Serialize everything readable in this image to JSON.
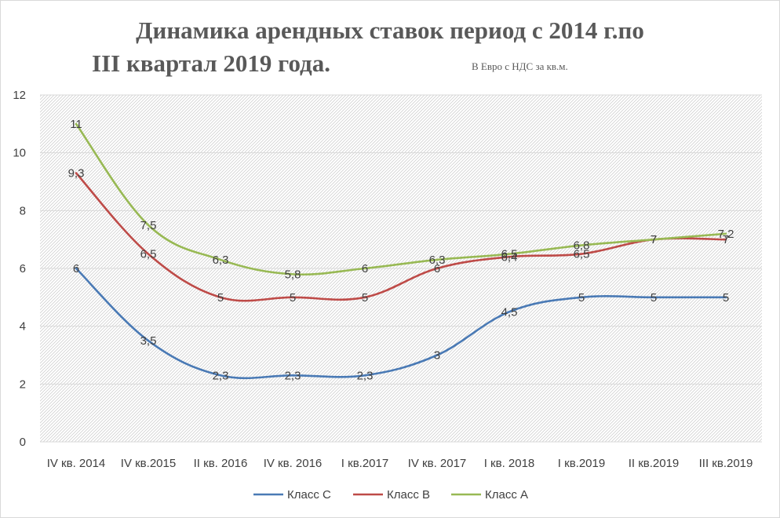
{
  "chart_data": {
    "type": "line",
    "title_line1": "Динамика арендных ставок  период с 2014 г.по",
    "title_line2": "III квартал 2019 года.",
    "subtitle": "В Евро с НДС за кв.м.",
    "categories": [
      "IV кв. 2014",
      "IV кв.2015",
      "II кв. 2016",
      "IV кв. 2016",
      "I кв.2017",
      "IV кв.  2017",
      "I кв. 2018",
      "I кв.2019",
      "II кв.2019",
      "III кв.2019"
    ],
    "ylim": [
      0,
      12
    ],
    "yticks": [
      0,
      2,
      4,
      6,
      8,
      10,
      12
    ],
    "grid": true,
    "legend_position": "bottom",
    "series": [
      {
        "name": "Класс С",
        "color": "#4a7ab5",
        "values": [
          6,
          3.5,
          2.3,
          2.3,
          2.3,
          3,
          4.5,
          5,
          5,
          5
        ],
        "labels": [
          "6",
          "3,5",
          "2,3",
          "2,3",
          "2,3",
          "3",
          "4,5",
          "5",
          "5",
          "5"
        ]
      },
      {
        "name": "Класс В",
        "color": "#be4b48",
        "values": [
          9.3,
          6.5,
          5,
          5,
          5,
          6,
          6.4,
          6.5,
          7,
          7
        ],
        "labels": [
          "9,3",
          "6,5",
          "5",
          "5",
          "5",
          "6",
          "6,4",
          "6,5",
          "7",
          "7"
        ]
      },
      {
        "name": "Класс А",
        "color": "#98b954",
        "values": [
          11,
          7.5,
          6.3,
          5.8,
          6,
          6.3,
          6.5,
          6.8,
          7,
          7.2
        ],
        "labels": [
          "11",
          "7,5",
          "6,3",
          "5,8",
          "6",
          "6,3",
          "6,5",
          "6,8",
          "7",
          "7,2"
        ]
      }
    ]
  }
}
